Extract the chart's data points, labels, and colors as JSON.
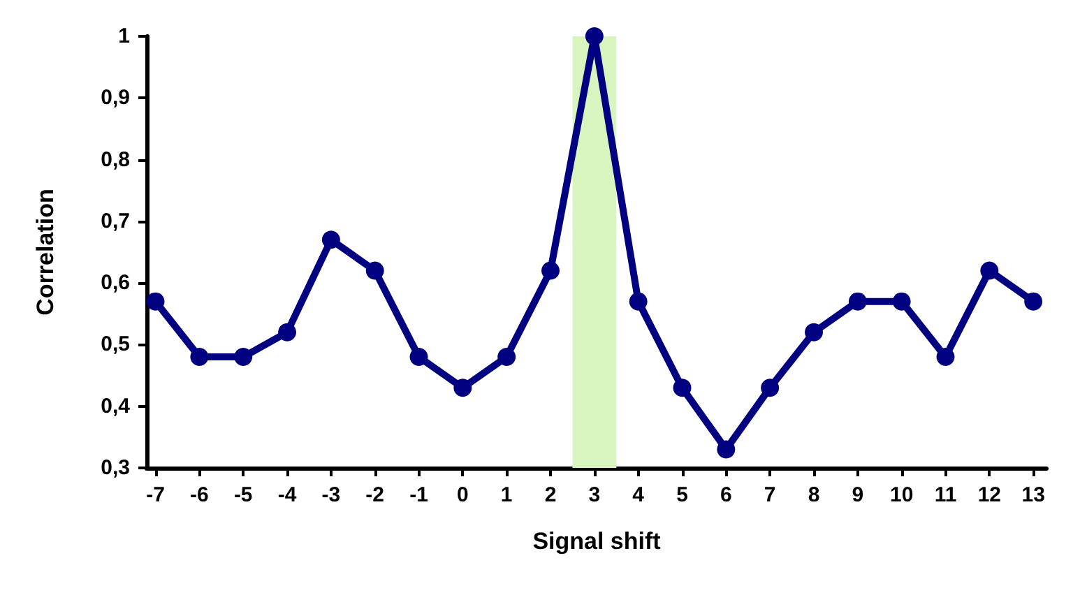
{
  "chart_data": {
    "type": "line",
    "xlabel": "Signal shift",
    "ylabel": "Correlation",
    "x": [
      -7,
      -6,
      -5,
      -4,
      -3,
      -2,
      -1,
      0,
      1,
      2,
      3,
      4,
      5,
      6,
      7,
      8,
      9,
      10,
      11,
      12,
      13
    ],
    "series": [
      {
        "color": "#000080",
        "values": [
          0.57,
          0.48,
          0.48,
          0.52,
          0.67,
          0.62,
          0.48,
          0.43,
          0.48,
          0.62,
          1,
          0.57,
          0.43,
          0.33,
          0.43,
          0.52,
          0.57,
          0.57,
          0.48,
          0.62,
          0.57
        ]
      }
    ],
    "xlim": [
      -7.2,
      13.3
    ],
    "xticks": [
      -7,
      -6,
      -5,
      -4,
      -3,
      -2,
      -1,
      0,
      1,
      2,
      3,
      4,
      5,
      6,
      7,
      8,
      9,
      10,
      11,
      12,
      13
    ],
    "ylim": [
      0.3,
      1
    ],
    "yticks": [
      {
        "value": 0.3,
        "label": "0,3"
      },
      {
        "value": 0.4,
        "label": "0,4"
      },
      {
        "value": 0.5,
        "label": "0,5"
      },
      {
        "value": 0.6,
        "label": "0,6"
      },
      {
        "value": 0.7,
        "label": "0,7"
      },
      {
        "value": 0.8,
        "label": "0,8"
      },
      {
        "value": 0.9,
        "label": "0,9"
      },
      {
        "value": 1,
        "label": "1"
      }
    ],
    "bands": [
      {
        "axis": "x",
        "from": 2.5,
        "to": 3.5,
        "color": "#d8f5c0"
      }
    ],
    "grid": false,
    "marker": "circle",
    "line_style": "solid"
  }
}
